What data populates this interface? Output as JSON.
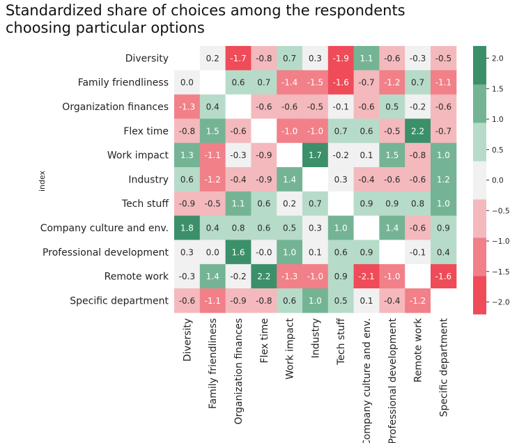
{
  "chart_data": {
    "type": "heatmap",
    "title": "Standardized share of choices among the respondents\nchoosing particular options",
    "ylabel": "index",
    "xlabel": "",
    "rows": [
      "Diversity",
      "Family friendliness",
      "Organization finances",
      "Flex time",
      "Work impact",
      "Industry",
      "Tech stuff",
      "Company culture and env.",
      "Professional development",
      "Remote work",
      "Specific department"
    ],
    "columns": [
      "Diversity",
      "Family friendliness",
      "Organization finances",
      "Flex time",
      "Work impact",
      "Industry",
      "Tech stuff",
      "Company culture and env.",
      "Professional development",
      "Remote work",
      "Specific department"
    ],
    "values": [
      [
        null,
        0.2,
        -1.7,
        -0.8,
        0.7,
        0.3,
        -1.9,
        1.1,
        -0.6,
        -0.3,
        -0.5
      ],
      [
        0.0,
        null,
        0.6,
        0.7,
        -1.4,
        -1.5,
        -1.6,
        -0.7,
        -1.2,
        0.7,
        -1.1
      ],
      [
        -1.3,
        0.4,
        null,
        -0.6,
        -0.6,
        -0.5,
        -0.1,
        -0.6,
        0.5,
        -0.2,
        -0.6
      ],
      [
        -0.8,
        1.5,
        -0.6,
        null,
        -1.0,
        -1.0,
        0.7,
        0.6,
        -0.5,
        2.2,
        -0.7
      ],
      [
        1.3,
        -1.1,
        -0.3,
        -0.9,
        null,
        1.7,
        -0.2,
        0.1,
        1.5,
        -0.8,
        1.0
      ],
      [
        0.6,
        -1.2,
        -0.4,
        -0.9,
        1.4,
        null,
        0.3,
        -0.4,
        -0.6,
        -0.6,
        1.2
      ],
      [
        -0.9,
        -0.5,
        1.1,
        0.6,
        0.2,
        0.7,
        null,
        0.9,
        0.9,
        0.8,
        1.0
      ],
      [
        1.8,
        0.4,
        0.8,
        0.6,
        0.5,
        0.3,
        1.0,
        null,
        1.4,
        -0.6,
        0.9
      ],
      [
        0.3,
        0.0,
        1.6,
        -0.0,
        1.0,
        0.1,
        0.6,
        0.9,
        null,
        -0.1,
        0.4
      ],
      [
        -0.3,
        1.4,
        -0.2,
        2.2,
        -1.3,
        -1.0,
        0.9,
        -2.1,
        -1.0,
        null,
        -1.6
      ],
      [
        -0.6,
        -1.1,
        -0.9,
        -0.8,
        0.6,
        1.0,
        0.5,
        0.1,
        -0.4,
        -1.2,
        null
      ]
    ],
    "value_labels": [
      [
        "",
        "0.2",
        "-1.7",
        "-0.8",
        "0.7",
        "0.3",
        "-1.9",
        "1.1",
        "-0.6",
        "-0.3",
        "-0.5"
      ],
      [
        "0.0",
        "",
        "0.6",
        "0.7",
        "-1.4",
        "-1.5",
        "-1.6",
        "-0.7",
        "-1.2",
        "0.7",
        "-1.1"
      ],
      [
        "-1.3",
        "0.4",
        "",
        "-0.6",
        "-0.6",
        "-0.5",
        "-0.1",
        "-0.6",
        "0.5",
        "-0.2",
        "-0.6"
      ],
      [
        "-0.8",
        "1.5",
        "-0.6",
        "",
        "-1.0",
        "-1.0",
        "0.7",
        "0.6",
        "-0.5",
        "2.2",
        "-0.7"
      ],
      [
        "1.3",
        "-1.1",
        "-0.3",
        "-0.9",
        "",
        "1.7",
        "-0.2",
        "0.1",
        "1.5",
        "-0.8",
        "1.0"
      ],
      [
        "0.6",
        "-1.2",
        "-0.4",
        "-0.9",
        "1.4",
        "",
        "0.3",
        "-0.4",
        "-0.6",
        "-0.6",
        "1.2"
      ],
      [
        "-0.9",
        "-0.5",
        "1.1",
        "0.6",
        "0.2",
        "0.7",
        "",
        "0.9",
        "0.9",
        "0.8",
        "1.0"
      ],
      [
        "1.8",
        "0.4",
        "0.8",
        "0.6",
        "0.5",
        "0.3",
        "1.0",
        "",
        "1.4",
        "-0.6",
        "0.9"
      ],
      [
        "0.3",
        "0.0",
        "1.6",
        "-0.0",
        "1.0",
        "0.1",
        "0.6",
        "0.9",
        "",
        "-0.1",
        "0.4"
      ],
      [
        "-0.3",
        "1.4",
        "-0.2",
        "2.2",
        "-1.3",
        "-1.0",
        "0.9",
        "-2.1",
        "-1.0",
        "",
        "-1.6"
      ],
      [
        "-0.6",
        "-1.1",
        "-0.9",
        "-0.8",
        "0.6",
        "1.0",
        "0.5",
        "0.1",
        "-0.4",
        "-1.2",
        ""
      ]
    ],
    "colorbar": {
      "range": [
        -2.2,
        2.2
      ],
      "ticks": [
        "2.0",
        "1.5",
        "1.0",
        "0.5",
        "0.0",
        "−0.5",
        "−1.0",
        "−1.5",
        "−2.0"
      ],
      "tick_values": [
        2.0,
        1.5,
        1.0,
        0.5,
        0.0,
        -0.5,
        -1.0,
        -1.5,
        -2.0
      ],
      "bins": [
        {
          "min": -2.2,
          "max": -1.572,
          "color": "#ef4b58"
        },
        {
          "min": -1.572,
          "max": -0.943,
          "color": "#f18089"
        },
        {
          "min": -0.943,
          "max": -0.314,
          "color": "#f4b9bd"
        },
        {
          "min": -0.314,
          "max": 0.314,
          "color": "#f1f1f1"
        },
        {
          "min": 0.314,
          "max": 0.943,
          "color": "#b7dbc9"
        },
        {
          "min": 0.943,
          "max": 1.572,
          "color": "#74b495"
        },
        {
          "min": 1.572,
          "max": 2.2,
          "color": "#3b9069"
        }
      ]
    },
    "missing_cell_color": "#ffffff",
    "grid": false,
    "legend": "colorbar-right"
  }
}
